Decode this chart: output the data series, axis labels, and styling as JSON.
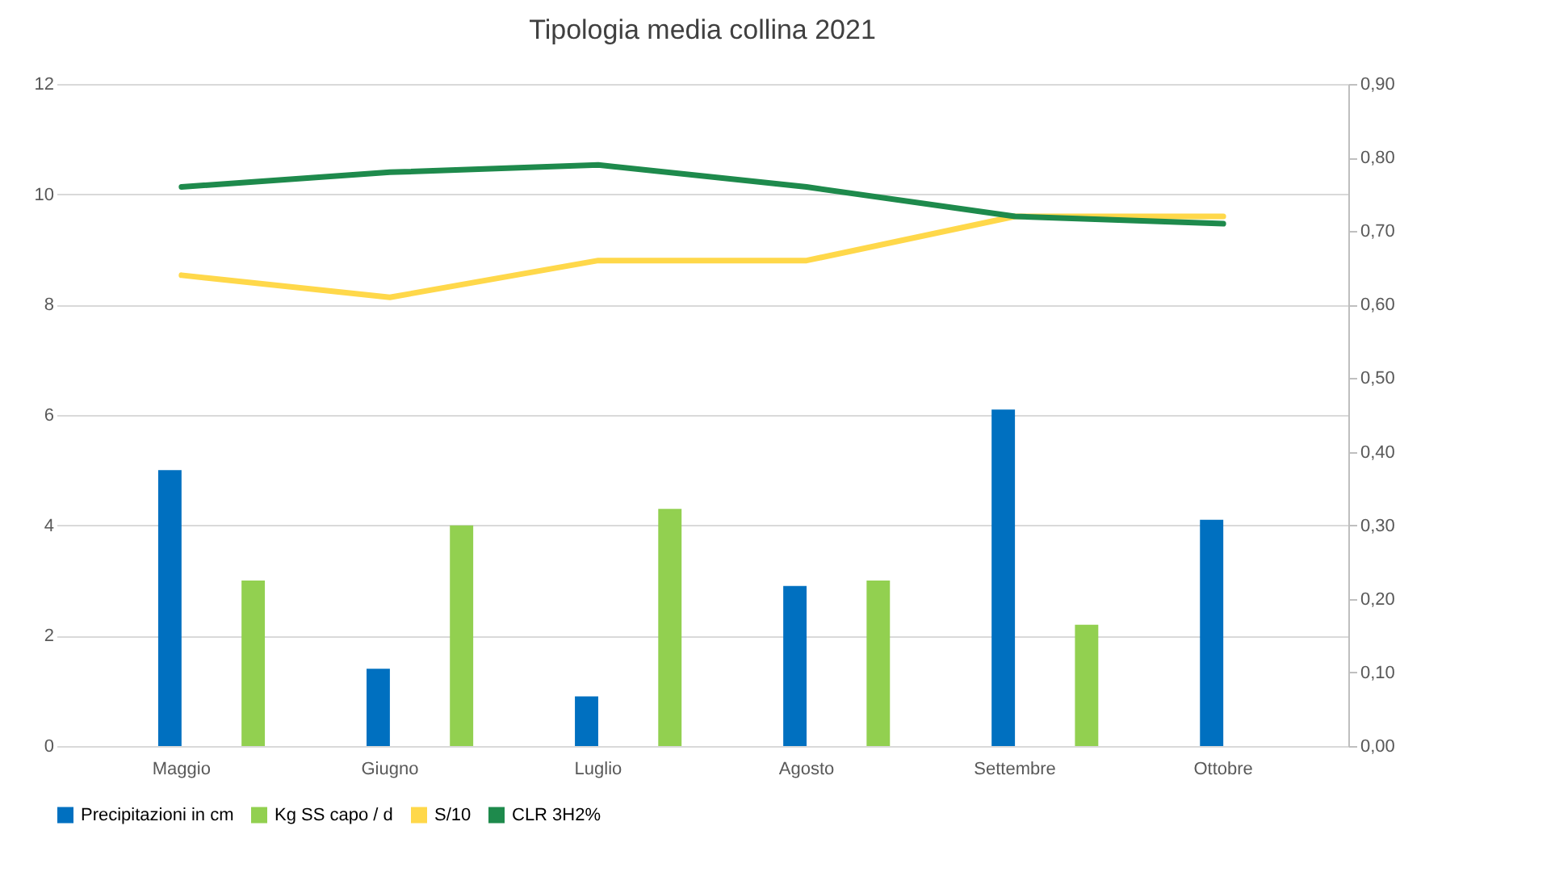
{
  "chart_data": {
    "type": "bar",
    "title": "Tipologia media collina 2021",
    "categories": [
      "Maggio",
      "Giugno",
      "Luglio",
      "Agosto",
      "Settembre",
      "Ottobre"
    ],
    "series": [
      {
        "name": "Precipitazioni in cm",
        "color": "#0070c0",
        "values": [
          5.0,
          1.4,
          0.9,
          2.9,
          6.1,
          4.1
        ]
      },
      {
        "name": "Kg SS capo / d",
        "color": "#92d050",
        "values": [
          3.0,
          4.0,
          4.3,
          3.0,
          2.2,
          null
        ]
      },
      {
        "name": "S/10",
        "color": "#ffd84a",
        "type": "line",
        "axis": "y2",
        "values": [
          0.64,
          0.61,
          0.66,
          0.66,
          0.72,
          0.72
        ]
      },
      {
        "name": "CLR 3H2%",
        "color": "#1e8a4c",
        "type": "line",
        "axis": "y2",
        "values": [
          0.76,
          0.78,
          0.79,
          0.76,
          0.72,
          0.71
        ]
      }
    ],
    "ylim": [
      0,
      12
    ],
    "yticks": [
      0,
      2,
      4,
      6,
      8,
      10,
      12
    ],
    "y2lim": [
      0,
      0.9
    ],
    "y2ticks": [
      {
        "value": 0,
        "label": "0,00"
      },
      {
        "value": 0.1,
        "label": "0,10"
      },
      {
        "value": 0.2,
        "label": "0,20"
      },
      {
        "value": 0.3,
        "label": "0,30"
      },
      {
        "value": 0.4,
        "label": "0,40"
      },
      {
        "value": 0.5,
        "label": "0,50"
      },
      {
        "value": 0.6,
        "label": "0,60"
      },
      {
        "value": 0.7,
        "label": "0,70"
      },
      {
        "value": 0.8,
        "label": "0,80"
      },
      {
        "value": 0.9,
        "label": "0,90"
      }
    ],
    "grid": "y",
    "legend": "bottom"
  }
}
